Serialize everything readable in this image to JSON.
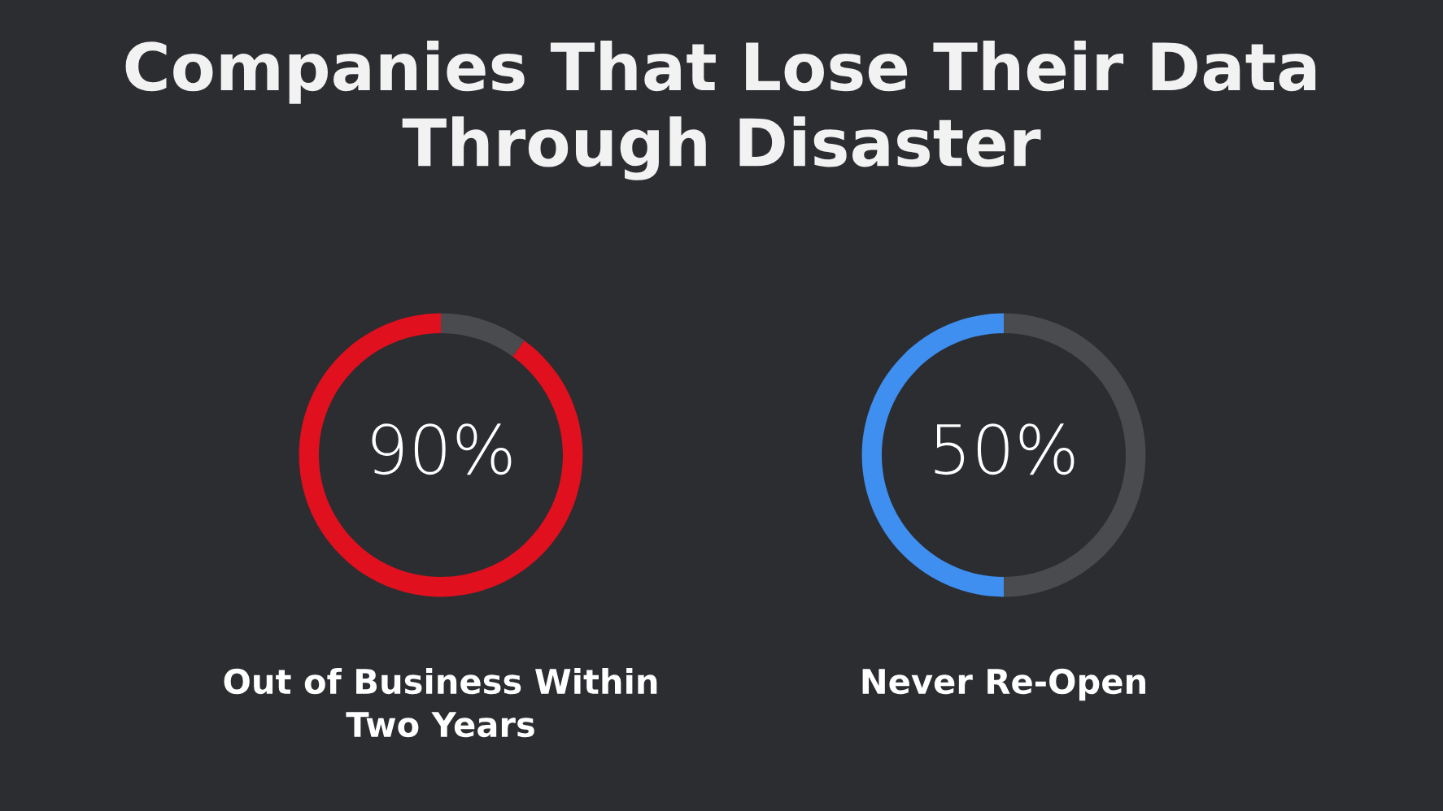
{
  "chart_data": [
    {
      "type": "donut",
      "title": "Companies That Lose Their Data Through Disaster",
      "xlabel": "Out of Business Within\nTwo Years",
      "categories": [
        null,
        null
      ],
      "values": [
        90,
        10
      ],
      "colors": [
        "#e0101e",
        "#4a4b4f"
      ],
      "value_labels": [
        "90%",
        null
      ]
    },
    {
      "type": "donut",
      "xlabel": "Never Re-Open",
      "categories": [
        null,
        null
      ],
      "values": [
        50,
        50
      ],
      "colors": [
        "#3f8ff0",
        "#4a4b4f"
      ],
      "value_labels": [
        "50%",
        null
      ]
    }
  ]
}
